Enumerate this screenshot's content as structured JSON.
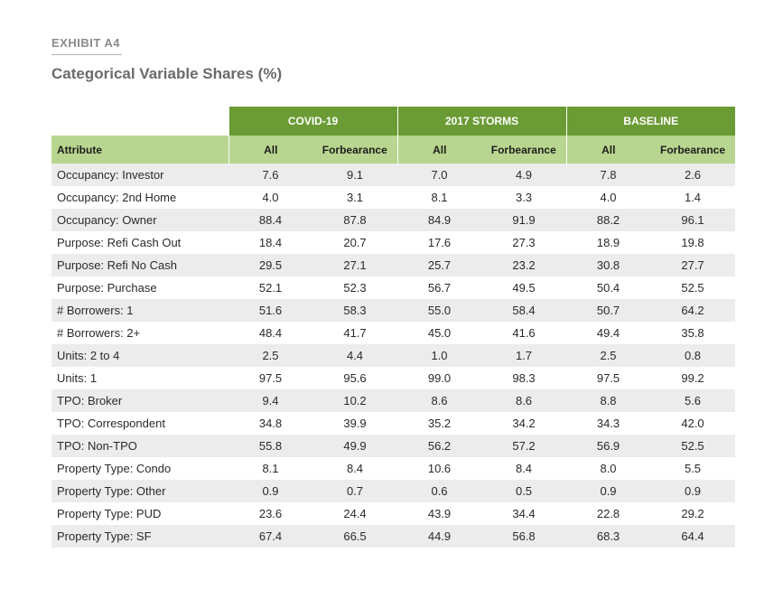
{
  "exhibit_label": "EXHIBIT A4",
  "title": "Categorical Variable Shares (%)",
  "table": {
    "groups": [
      "COVID-19",
      "2017 STORMS",
      "BASELINE"
    ],
    "columns": [
      "Attribute",
      "All",
      "Forbearance",
      "All",
      "Forbearance",
      "All",
      "Forbearance"
    ],
    "rows": [
      [
        "Occupancy: Investor",
        "7.6",
        "9.1",
        "7.0",
        "4.9",
        "7.8",
        "2.6"
      ],
      [
        "Occupancy: 2nd Home",
        "4.0",
        "3.1",
        "8.1",
        "3.3",
        "4.0",
        "1.4"
      ],
      [
        "Occupancy: Owner",
        "88.4",
        "87.8",
        "84.9",
        "91.9",
        "88.2",
        "96.1"
      ],
      [
        "Purpose: Refi Cash Out",
        "18.4",
        "20.7",
        "17.6",
        "27.3",
        "18.9",
        "19.8"
      ],
      [
        "Purpose: Refi No Cash",
        "29.5",
        "27.1",
        "25.7",
        "23.2",
        "30.8",
        "27.7"
      ],
      [
        "Purpose: Purchase",
        "52.1",
        "52.3",
        "56.7",
        "49.5",
        "50.4",
        "52.5"
      ],
      [
        "# Borrowers: 1",
        "51.6",
        "58.3",
        "55.0",
        "58.4",
        "50.7",
        "64.2"
      ],
      [
        "# Borrowers: 2+",
        "48.4",
        "41.7",
        "45.0",
        "41.6",
        "49.4",
        "35.8"
      ],
      [
        "Units: 2 to 4",
        "2.5",
        "4.4",
        "1.0",
        "1.7",
        "2.5",
        "0.8"
      ],
      [
        "Units: 1",
        "97.5",
        "95.6",
        "99.0",
        "98.3",
        "97.5",
        "99.2"
      ],
      [
        "TPO: Broker",
        "9.4",
        "10.2",
        "8.6",
        "8.6",
        "8.8",
        "5.6"
      ],
      [
        "TPO: Correspondent",
        "34.8",
        "39.9",
        "35.2",
        "34.2",
        "34.3",
        "42.0"
      ],
      [
        "TPO: Non-TPO",
        "55.8",
        "49.9",
        "56.2",
        "57.2",
        "56.9",
        "52.5"
      ],
      [
        "Property Type: Condo",
        "8.1",
        "8.4",
        "10.6",
        "8.4",
        "8.0",
        "5.5"
      ],
      [
        "Property Type: Other",
        "0.9",
        "0.7",
        "0.6",
        "0.5",
        "0.9",
        "0.9"
      ],
      [
        "Property Type: PUD",
        "23.6",
        "24.4",
        "43.9",
        "34.4",
        "22.8",
        "29.2"
      ],
      [
        "Property Type: SF",
        "67.4",
        "66.5",
        "44.9",
        "56.8",
        "68.3",
        "64.4"
      ]
    ]
  }
}
